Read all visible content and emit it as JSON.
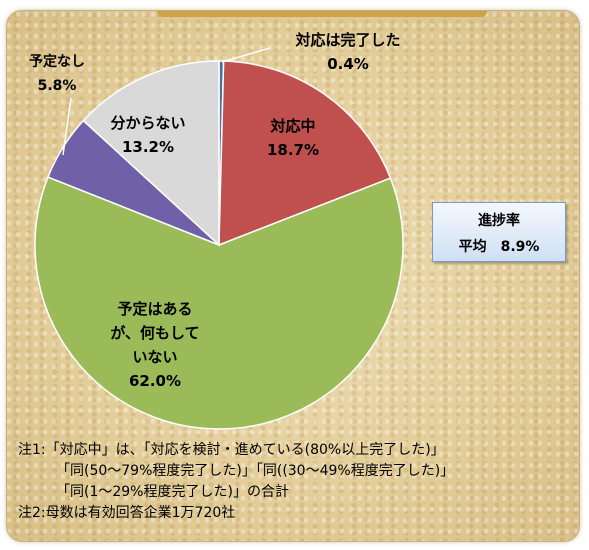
{
  "chart_data": {
    "type": "pie",
    "slices": [
      {
        "label_lines": [
          "対応は完了した"
        ],
        "value_text": "0.4%",
        "value": 0.4,
        "color": "#4a6fa5"
      },
      {
        "label_lines": [
          "対応中"
        ],
        "value_text": "18.7%",
        "value": 18.7,
        "color": "#c0504d"
      },
      {
        "label_lines": [
          "予定はある",
          "が、何もして",
          "いない"
        ],
        "value_text": "62.0%",
        "value": 62.0,
        "color": "#9bbb59"
      },
      {
        "label_lines": [
          "予定なし"
        ],
        "value_text": "5.8%",
        "value": 5.8,
        "color": "#7060a8"
      },
      {
        "label_lines": [
          "分からない"
        ],
        "value_text": "13.2%",
        "value": 13.2,
        "color": "#d9d9d9"
      }
    ],
    "start_angle_deg": 0,
    "direction": "clockwise"
  },
  "progress": {
    "title": "進捗率",
    "value_line": "平均　8.9%"
  },
  "notes": [
    "注1:「対応中」は、「対応を検討・進めている(80%以上完了した)」",
    "「同(50～79%程度完了した)」「同((30～49%程度完了した)」",
    "「同(1～29%程度完了した)」の合計",
    "注2:母数は有効回答企業1万720社"
  ],
  "colors": {
    "frame_background": "#e3cd98",
    "progress_box_border": "#7a98c2"
  }
}
